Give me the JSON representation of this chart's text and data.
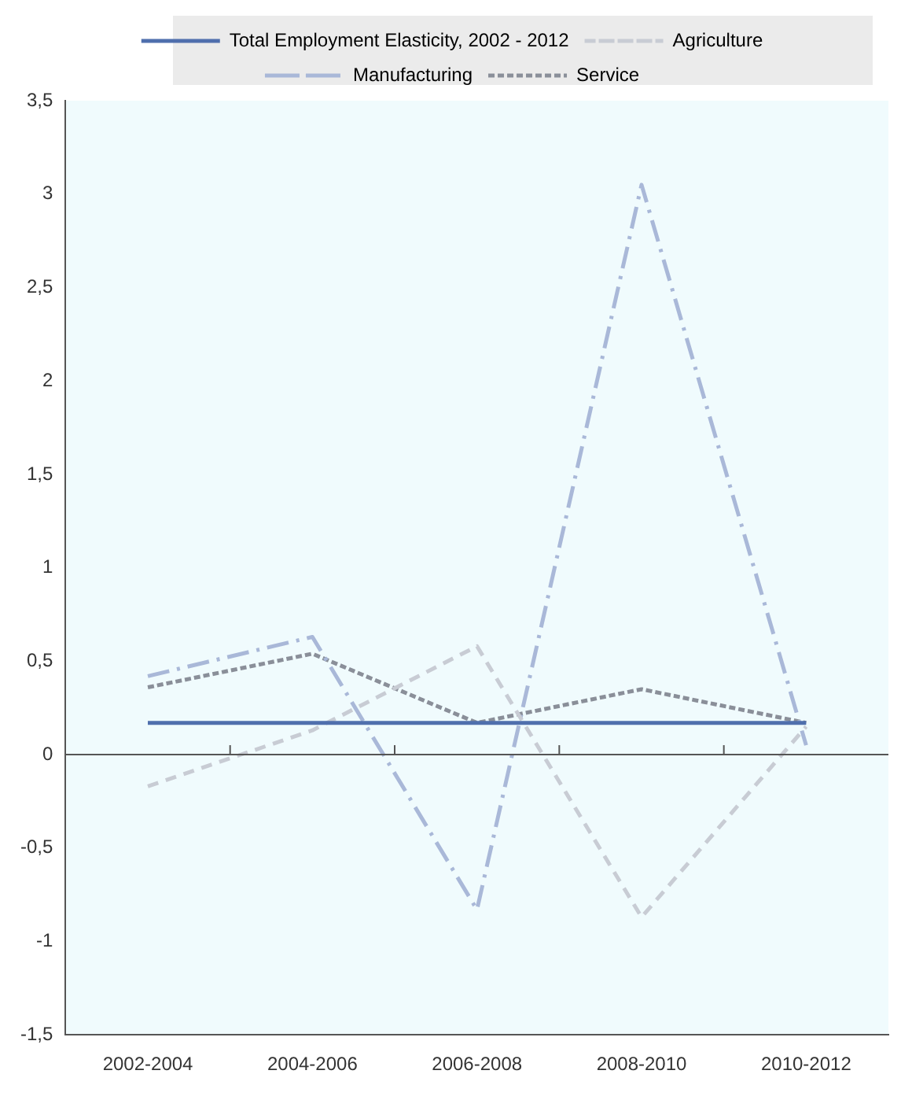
{
  "chart_data": {
    "type": "line",
    "categories": [
      "2002-2004",
      "2004-2006",
      "2006-2008",
      "2008-2010",
      "2010-2012"
    ],
    "series": [
      {
        "name": "Total Employment Elasticity, 2002 - 2012",
        "color": "#4f6fad",
        "line_style": "solid",
        "values": [
          0.17,
          0.17,
          0.17,
          0.17,
          0.17
        ]
      },
      {
        "name": "Agriculture",
        "color": "#c8ccd4",
        "line_style": "dashed",
        "values": [
          -0.17,
          0.13,
          0.58,
          -0.87,
          0.15
        ]
      },
      {
        "name": "Manufacturing",
        "color": "#a9b8d8",
        "line_style": "dashdot",
        "values": [
          0.42,
          0.63,
          -0.83,
          3.05,
          0.05
        ]
      },
      {
        "name": "Service",
        "color": "#8a8f99",
        "line_style": "dotted",
        "values": [
          0.36,
          0.54,
          0.17,
          0.35,
          0.17
        ]
      }
    ],
    "ylim": [
      -1.5,
      3.5
    ],
    "yticks": [
      {
        "value": -1.5,
        "label": "-1,5"
      },
      {
        "value": -1,
        "label": "-1"
      },
      {
        "value": -0.5,
        "label": "-0,5"
      },
      0,
      {
        "value": 0.5,
        "label": "0,5"
      },
      1,
      {
        "value": 1.5,
        "label": "1,5"
      },
      2,
      {
        "value": 2.5,
        "label": "2,5"
      },
      3,
      {
        "value": 3.5,
        "label": "3,5"
      }
    ],
    "ref_lines": [
      {
        "axis": "y",
        "value": 0,
        "color": "#555555"
      }
    ],
    "grid": false,
    "legend": "top",
    "marker": "none"
  }
}
